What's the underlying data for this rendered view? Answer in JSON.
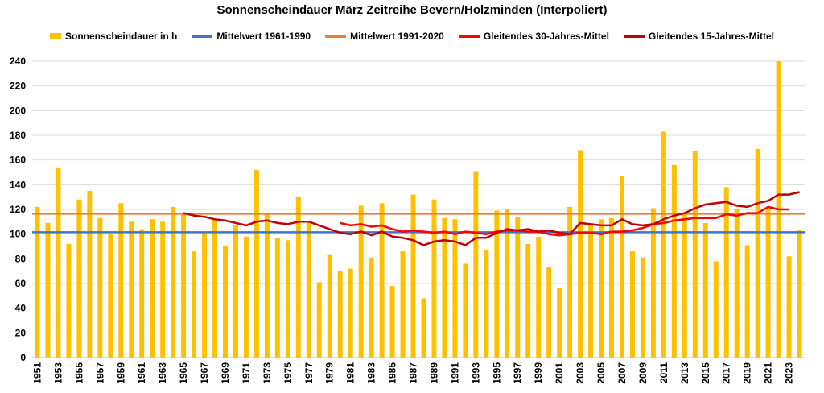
{
  "chart_data": {
    "type": "bar",
    "title": "Sonnenscheindauer März Zeitreihe Bevern/Holzminden (Interpoliert)",
    "xlabel": "",
    "ylabel": "",
    "ylim": [
      0,
      240
    ],
    "yticks": [
      0,
      20,
      40,
      60,
      80,
      100,
      120,
      140,
      160,
      180,
      200,
      220,
      240
    ],
    "grid": "horizontal",
    "legend_position": "top",
    "years": [
      1951,
      1952,
      1953,
      1954,
      1955,
      1956,
      1957,
      1958,
      1959,
      1960,
      1961,
      1962,
      1963,
      1964,
      1965,
      1966,
      1967,
      1968,
      1969,
      1970,
      1971,
      1972,
      1973,
      1974,
      1975,
      1976,
      1977,
      1978,
      1979,
      1980,
      1981,
      1982,
      1983,
      1984,
      1985,
      1986,
      1987,
      1988,
      1989,
      1990,
      1991,
      1992,
      1993,
      1994,
      1995,
      1996,
      1997,
      1998,
      1999,
      2000,
      2001,
      2002,
      2003,
      2004,
      2005,
      2006,
      2007,
      2008,
      2009,
      2010,
      2011,
      2012,
      2013,
      2014,
      2015,
      2016,
      2017,
      2018,
      2019,
      2020,
      2021,
      2022,
      2023,
      2024
    ],
    "xtick_labels": [
      "1951",
      "1953",
      "1955",
      "1957",
      "1959",
      "1961",
      "1963",
      "1965",
      "1967",
      "1969",
      "1971",
      "1973",
      "1975",
      "1977",
      "1979",
      "1981",
      "1983",
      "1985",
      "1987",
      "1989",
      "1991",
      "1993",
      "1995",
      "1997",
      "1999",
      "2001",
      "2003",
      "2005",
      "2007",
      "2009",
      "2011",
      "2013",
      "2015",
      "2017",
      "2019",
      "2021",
      "2023"
    ],
    "series": [
      {
        "name": "Sonnenscheindauer in h",
        "kind": "bar",
        "color": "#FFC000",
        "values": [
          122,
          109,
          154,
          92,
          128,
          135,
          113,
          100,
          125,
          110,
          104,
          112,
          110,
          122,
          117,
          86,
          101,
          112,
          90,
          107,
          98,
          152,
          117,
          97,
          95,
          130,
          110,
          61,
          83,
          70,
          72,
          123,
          81,
          125,
          58,
          86,
          132,
          48,
          128,
          113,
          112,
          76,
          151,
          87,
          119,
          120,
          114,
          92,
          98,
          73,
          56,
          122,
          168,
          108,
          112,
          113,
          147,
          86,
          81,
          121,
          183,
          156,
          116,
          167,
          109,
          78,
          138,
          120,
          91,
          169,
          121,
          240,
          82,
          103
        ]
      },
      {
        "name": "Mittelwert 1961-1990",
        "kind": "line",
        "color": "#4472C4",
        "constant": 101.5
      },
      {
        "name": "Mittelwert 1991-2020",
        "kind": "line",
        "color": "#ED7D31",
        "constant": 116.5
      },
      {
        "name": "Gleitendes 30-Jahres-Mittel",
        "kind": "line",
        "color": "#FF0000",
        "start_year": 1980,
        "values": [
          109,
          107,
          108,
          106,
          107,
          104,
          102,
          103,
          102,
          101,
          102,
          100,
          102,
          101,
          100,
          102,
          103,
          103,
          102,
          102,
          100,
          99,
          100,
          101,
          101,
          100,
          102,
          102,
          103,
          105,
          108,
          109,
          111,
          112,
          113,
          113,
          113,
          116,
          115,
          117,
          117,
          122,
          120,
          120
        ]
      },
      {
        "name": "Gleitendes 15-Jahres-Mittel",
        "kind": "line",
        "color": "#C00000",
        "start_year": 1965,
        "values": [
          117,
          115,
          114,
          112,
          111,
          109,
          107,
          110,
          111,
          109,
          108,
          110,
          110,
          107,
          104,
          101,
          100,
          102,
          99,
          102,
          98,
          97,
          95,
          91,
          94,
          95,
          94,
          91,
          97,
          97,
          101,
          104,
          103,
          104,
          102,
          103,
          101,
          100,
          109,
          108,
          107,
          107,
          112,
          108,
          107,
          108,
          112,
          115,
          117,
          121,
          124,
          125,
          126,
          123,
          122,
          125,
          127,
          132,
          132,
          134
        ]
      }
    ]
  }
}
